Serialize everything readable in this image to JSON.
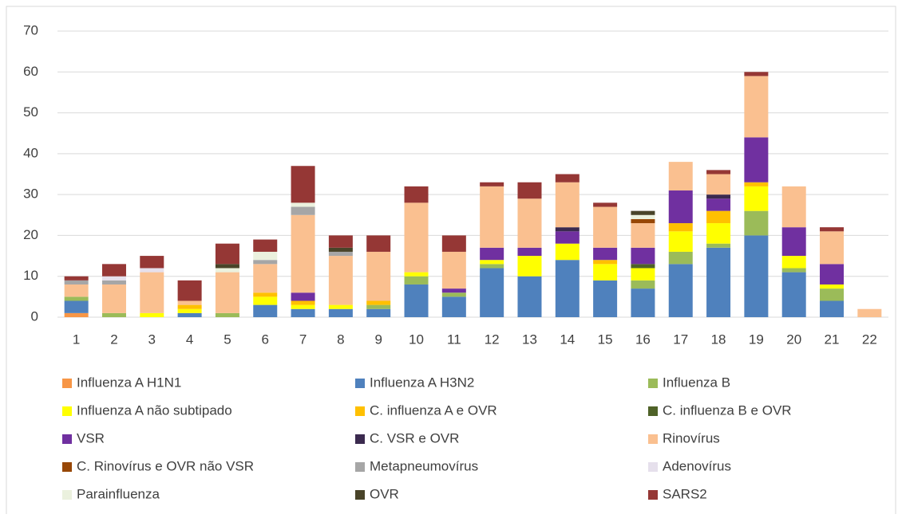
{
  "chart_data": {
    "type": "stacked_bar",
    "categories": [
      "1",
      "2",
      "3",
      "4",
      "5",
      "6",
      "7",
      "8",
      "9",
      "10",
      "11",
      "12",
      "13",
      "14",
      "15",
      "16",
      "17",
      "18",
      "19",
      "20",
      "21",
      "22"
    ],
    "ylim": [
      0,
      70
    ],
    "yticks": [
      0,
      10,
      20,
      30,
      40,
      50,
      60,
      70
    ],
    "grid": true,
    "series": [
      {
        "name": "Influenza A H1N1",
        "color": "#f79646",
        "values": [
          1,
          0,
          0,
          0,
          0,
          0,
          0,
          0,
          0,
          0,
          0,
          0,
          0,
          0,
          0,
          0,
          0,
          0,
          0,
          0,
          0,
          0
        ]
      },
      {
        "name": "Influenza A H3N2",
        "color": "#4f81bd",
        "values": [
          3,
          0,
          0,
          1,
          0,
          3,
          2,
          2,
          2,
          8,
          5,
          12,
          10,
          14,
          9,
          7,
          13,
          17,
          20,
          11,
          4,
          0
        ]
      },
      {
        "name": "Influenza B",
        "color": "#9bbb59",
        "values": [
          1,
          1,
          0,
          0,
          1,
          0,
          0,
          0,
          1,
          2,
          1,
          1,
          0,
          0,
          0,
          2,
          3,
          1,
          6,
          1,
          3,
          0
        ]
      },
      {
        "name": "Influenza A não subtipado",
        "color": "#ffff00",
        "values": [
          0,
          0,
          1,
          1,
          0,
          2,
          1,
          1,
          0,
          1,
          0,
          1,
          5,
          4,
          4,
          3,
          5,
          5,
          6,
          3,
          1,
          0
        ]
      },
      {
        "name": "C. influenza A e OVR",
        "color": "#ffc000",
        "values": [
          0,
          0,
          0,
          1,
          0,
          1,
          1,
          0,
          1,
          0,
          0,
          0,
          0,
          0,
          1,
          0,
          2,
          3,
          1,
          0,
          0,
          0
        ]
      },
      {
        "name": "C. influenza B e OVR",
        "color": "#4f6228",
        "values": [
          0,
          0,
          0,
          0,
          0,
          0,
          0,
          0,
          0,
          0,
          0,
          0,
          0,
          0,
          0,
          1,
          0,
          0,
          0,
          0,
          0,
          0
        ]
      },
      {
        "name": "VSR",
        "color": "#7030a0",
        "values": [
          0,
          0,
          0,
          0,
          0,
          0,
          2,
          0,
          0,
          0,
          1,
          3,
          2,
          3,
          3,
          4,
          8,
          3,
          11,
          7,
          5,
          0
        ]
      },
      {
        "name": "C. VSR e OVR",
        "color": "#3b2a4f",
        "values": [
          0,
          0,
          0,
          0,
          0,
          0,
          0,
          0,
          0,
          0,
          0,
          0,
          0,
          1,
          0,
          0,
          0,
          1,
          0,
          0,
          0,
          0
        ]
      },
      {
        "name": "Rinovírus",
        "color": "#fac090",
        "values": [
          3,
          7,
          10,
          1,
          10,
          7,
          19,
          12,
          12,
          17,
          9,
          15,
          12,
          11,
          10,
          6,
          7,
          5,
          15,
          10,
          8,
          2
        ]
      },
      {
        "name": "C. Rinovírus e OVR não VSR",
        "color": "#974706",
        "values": [
          0,
          0,
          0,
          0,
          0,
          0,
          0,
          0,
          0,
          0,
          0,
          0,
          0,
          0,
          0,
          1,
          0,
          0,
          0,
          0,
          0,
          0
        ]
      },
      {
        "name": "Metapneumovírus",
        "color": "#a6a6a6",
        "values": [
          1,
          1,
          0,
          0,
          0,
          1,
          2,
          1,
          0,
          0,
          0,
          0,
          0,
          0,
          0,
          0,
          0,
          0,
          0,
          0,
          0,
          0
        ]
      },
      {
        "name": "Adenovírus",
        "color": "#e6e0ec",
        "values": [
          0,
          1,
          1,
          0,
          0,
          0,
          0,
          0,
          0,
          0,
          0,
          0,
          0,
          0,
          0,
          0,
          0,
          0,
          0,
          0,
          0,
          0
        ]
      },
      {
        "name": "Parainfluenza",
        "color": "#ebf1de",
        "values": [
          0,
          0,
          0,
          0,
          1,
          2,
          1,
          0,
          0,
          0,
          0,
          0,
          0,
          0,
          0,
          1,
          0,
          0,
          0,
          0,
          0,
          0
        ]
      },
      {
        "name": "OVR",
        "color": "#494429",
        "values": [
          0,
          0,
          0,
          0,
          1,
          0,
          0,
          1,
          0,
          0,
          0,
          0,
          0,
          0,
          0,
          1,
          0,
          0,
          0,
          0,
          0,
          0
        ]
      },
      {
        "name": "SARS2",
        "color": "#953735",
        "values": [
          1,
          3,
          3,
          5,
          5,
          3,
          9,
          3,
          4,
          4,
          4,
          1,
          4,
          2,
          1,
          0,
          0,
          1,
          1,
          0,
          1,
          0
        ]
      }
    ]
  }
}
